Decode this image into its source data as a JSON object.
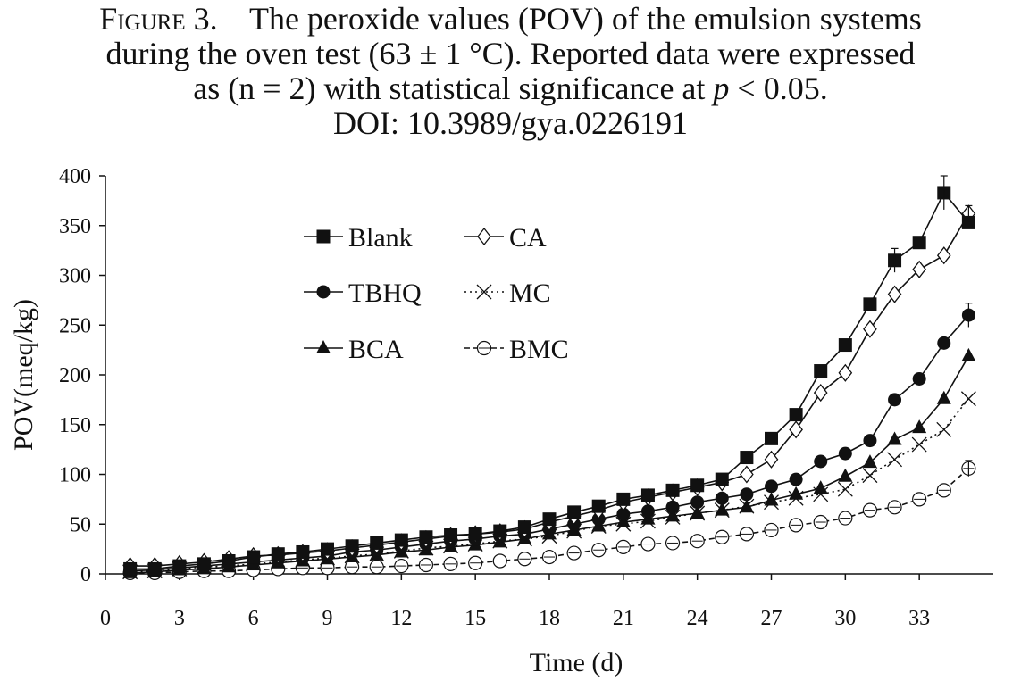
{
  "caption": {
    "figure_label": "Figure 3.",
    "line1": "The peroxide values (POV) of the emulsion systems",
    "line2": "during the oven test (63 ± 1 °C). Reported data were expressed",
    "line3_pre": "as (n = 2) with statistical significance at ",
    "line3_p": "p",
    "line3_post": " < 0.05.",
    "doi": "DOI: 10.3989/gya.0226191"
  },
  "chart_data": {
    "type": "line",
    "xlabel": "Time (d)",
    "ylabel": "POV(meq/kg)",
    "xlim": [
      0,
      36
    ],
    "ylim": [
      0,
      400
    ],
    "xticks": [
      0,
      3,
      6,
      9,
      12,
      15,
      18,
      21,
      24,
      27,
      30,
      33
    ],
    "yticks": [
      0,
      50,
      100,
      150,
      200,
      250,
      300,
      350,
      400
    ],
    "grid": false,
    "legend_position": "upper-left, two columns",
    "x": [
      1,
      2,
      3,
      4,
      5,
      6,
      7,
      8,
      9,
      10,
      11,
      12,
      13,
      14,
      15,
      16,
      17,
      18,
      19,
      20,
      21,
      22,
      23,
      24,
      25,
      26,
      27,
      28,
      29,
      30,
      31,
      32,
      33,
      34,
      35
    ],
    "series": [
      {
        "name": "Blank",
        "marker": "filled-square",
        "line": "solid",
        "values": [
          5,
          5,
          8,
          10,
          13,
          17,
          20,
          22,
          25,
          28,
          31,
          34,
          37,
          39,
          40,
          43,
          47,
          55,
          62,
          68,
          75,
          79,
          84,
          89,
          95,
          117,
          136,
          160,
          204,
          230,
          271,
          315,
          333,
          383,
          353
        ]
      },
      {
        "name": "CA",
        "marker": "open-diamond",
        "line": "solid",
        "values": [
          8,
          8,
          10,
          12,
          15,
          18,
          19,
          21,
          23,
          26,
          29,
          32,
          35,
          38,
          40,
          42,
          45,
          52,
          58,
          64,
          72,
          77,
          82,
          87,
          92,
          100,
          115,
          145,
          182,
          202,
          246,
          281,
          306,
          320,
          362
        ]
      },
      {
        "name": "TBHQ",
        "marker": "filled-circle",
        "line": "solid",
        "values": [
          3,
          4,
          6,
          8,
          10,
          12,
          14,
          16,
          18,
          22,
          24,
          27,
          30,
          33,
          35,
          38,
          40,
          45,
          50,
          55,
          60,
          63,
          67,
          72,
          76,
          80,
          88,
          95,
          113,
          121,
          134,
          175,
          196,
          232,
          260
        ]
      },
      {
        "name": "MC",
        "marker": "x-cross",
        "line": "dotted",
        "values": [
          2,
          3,
          5,
          7,
          8,
          10,
          12,
          14,
          16,
          18,
          20,
          23,
          26,
          28,
          30,
          33,
          35,
          38,
          43,
          48,
          50,
          53,
          57,
          61,
          64,
          68,
          72,
          76,
          80,
          85,
          99,
          115,
          130,
          145,
          176
        ]
      },
      {
        "name": "BCA",
        "marker": "filled-triangle",
        "line": "solid",
        "values": [
          1,
          2,
          4,
          5,
          7,
          9,
          11,
          13,
          15,
          17,
          19,
          22,
          24,
          27,
          29,
          32,
          35,
          40,
          44,
          48,
          52,
          55,
          58,
          61,
          64,
          67,
          74,
          80,
          86,
          98,
          112,
          135,
          147,
          176,
          219
        ]
      },
      {
        "name": "BMC",
        "marker": "open-circle",
        "line": "dashed",
        "values": [
          1,
          1,
          2,
          3,
          3,
          4,
          5,
          6,
          6,
          7,
          7,
          8,
          9,
          10,
          11,
          13,
          15,
          17,
          21,
          24,
          27,
          30,
          31,
          33,
          37,
          40,
          44,
          49,
          52,
          56,
          64,
          67,
          75,
          84,
          106
        ]
      }
    ],
    "error_bars": [
      {
        "series": "Blank",
        "x": 32,
        "plus_minus": 12
      },
      {
        "series": "Blank",
        "x": 34,
        "plus_minus": 17
      },
      {
        "series": "CA",
        "x": 35,
        "plus_minus": 8
      },
      {
        "series": "TBHQ",
        "x": 35,
        "plus_minus": 12
      },
      {
        "series": "BMC",
        "x": 35,
        "plus_minus": 8
      }
    ]
  }
}
